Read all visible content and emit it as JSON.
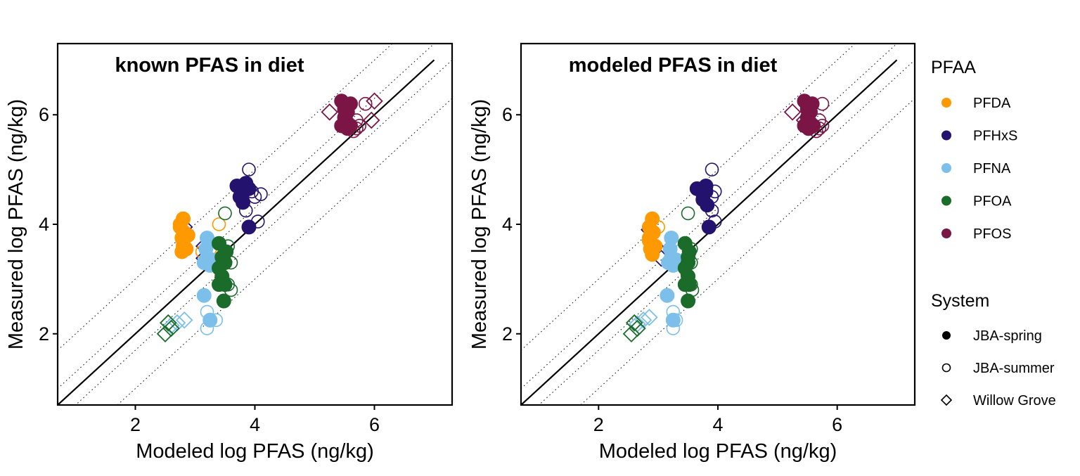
{
  "colors": {
    "PFDA": "#FF9900",
    "PFHxS": "#24136E",
    "PFNA": "#7CBFEA",
    "PFOA": "#1B6B2A",
    "PFOS": "#7A1546"
  },
  "legend": {
    "pfaa_title": "PFAA",
    "pfaa_items": [
      {
        "label": "PFDA",
        "color": "#FF9900"
      },
      {
        "label": "PFHxS",
        "color": "#24136E"
      },
      {
        "label": "PFNA",
        "color": "#7CBFEA"
      },
      {
        "label": "PFOA",
        "color": "#1B6B2A"
      },
      {
        "label": "PFOS",
        "color": "#7A1546"
      }
    ],
    "system_title": "System",
    "system_items": [
      {
        "label": "JBA-spring",
        "shape": "filled-circle"
      },
      {
        "label": "JBA-summer",
        "shape": "open-circle"
      },
      {
        "label": "Willow Grove",
        "shape": "open-diamond"
      }
    ]
  },
  "chart_data": [
    {
      "type": "scatter",
      "title": "known PFAS in diet",
      "xlabel": "Modeled log PFAS (ng/kg)",
      "ylabel": "Measured log PFAS (ng/kg)",
      "xlim": [
        0.7,
        7.3
      ],
      "ylim": [
        0.7,
        7.3
      ],
      "xticks": [
        "2",
        "4",
        "6"
      ],
      "yticks": [
        "2",
        "4",
        "6"
      ],
      "reference_lines": {
        "identity": "y = x",
        "dotted_offsets": [
          -1,
          -0.3,
          0.3,
          1
        ]
      },
      "grid": false,
      "series": [
        {
          "name": "PFDA",
          "system": "JBA-spring",
          "points": [
            [
              2.75,
              3.95
            ],
            [
              2.8,
              4.1
            ],
            [
              2.82,
              3.85
            ],
            [
              2.78,
              3.75
            ],
            [
              2.8,
              3.6
            ],
            [
              2.78,
              3.5
            ],
            [
              2.85,
              3.55
            ],
            [
              2.8,
              3.7
            ],
            [
              2.88,
              3.8
            ],
            [
              2.75,
              4.0
            ]
          ]
        },
        {
          "name": "PFDA",
          "system": "JBA-summer",
          "points": [
            [
              3.4,
              4.0
            ],
            [
              3.25,
              3.55
            ],
            [
              3.12,
              3.5
            ]
          ]
        },
        {
          "name": "PFHxS",
          "system": "JBA-spring",
          "points": [
            [
              3.7,
              4.7
            ],
            [
              3.8,
              4.6
            ],
            [
              3.85,
              4.75
            ],
            [
              3.75,
              4.5
            ],
            [
              3.8,
              4.4
            ],
            [
              3.9,
              4.65
            ],
            [
              3.9,
              3.95
            ]
          ]
        },
        {
          "name": "PFHxS",
          "system": "JBA-summer",
          "points": [
            [
              3.9,
              5.0
            ],
            [
              3.95,
              4.6
            ],
            [
              4.1,
              4.55
            ],
            [
              3.85,
              4.25
            ],
            [
              4.05,
              4.05
            ],
            [
              4.0,
              4.5
            ]
          ]
        },
        {
          "name": "PFHxS",
          "system": "Willow Grove",
          "points": [
            [
              2.82,
              3.95
            ],
            [
              3.15,
              3.6
            ],
            [
              3.15,
              3.38
            ]
          ]
        },
        {
          "name": "PFNA",
          "system": "JBA-spring",
          "points": [
            [
              3.2,
              3.75
            ],
            [
              3.18,
              3.55
            ],
            [
              3.2,
              3.4
            ],
            [
              3.25,
              3.25
            ],
            [
              3.15,
              3.3
            ],
            [
              3.28,
              3.35
            ],
            [
              3.15,
              2.7
            ],
            [
              3.25,
              2.25
            ]
          ]
        },
        {
          "name": "PFNA",
          "system": "JBA-summer",
          "points": [
            [
              3.2,
              2.4
            ],
            [
              3.35,
              2.25
            ],
            [
              3.2,
              2.1
            ],
            [
              3.3,
              3.5
            ]
          ]
        },
        {
          "name": "PFNA",
          "system": "Willow Grove",
          "points": [
            [
              2.7,
              2.2
            ],
            [
              2.82,
              2.25
            ],
            [
              2.6,
              2.15
            ]
          ]
        },
        {
          "name": "PFOA",
          "system": "JBA-spring",
          "points": [
            [
              3.4,
              3.65
            ],
            [
              3.45,
              3.4
            ],
            [
              3.5,
              3.3
            ],
            [
              3.4,
              3.2
            ],
            [
              3.45,
              3.05
            ],
            [
              3.4,
              2.9
            ],
            [
              3.5,
              2.9
            ],
            [
              3.48,
              2.6
            ],
            [
              3.52,
              3.5
            ]
          ]
        },
        {
          "name": "PFOA",
          "system": "JBA-summer",
          "points": [
            [
              3.5,
              4.2
            ],
            [
              3.55,
              3.6
            ],
            [
              3.6,
              3.3
            ],
            [
              3.55,
              2.9
            ],
            [
              3.6,
              2.8
            ]
          ]
        },
        {
          "name": "PFOA",
          "system": "Willow Grove",
          "points": [
            [
              2.55,
              2.2
            ],
            [
              2.5,
              2.0
            ],
            [
              2.6,
              2.1
            ]
          ]
        },
        {
          "name": "PFOS",
          "system": "JBA-spring",
          "points": [
            [
              5.45,
              6.25
            ],
            [
              5.5,
              6.15
            ],
            [
              5.55,
              6.05
            ],
            [
              5.5,
              5.95
            ],
            [
              5.55,
              5.85
            ],
            [
              5.45,
              5.8
            ],
            [
              5.6,
              5.8
            ],
            [
              5.5,
              6.1
            ],
            [
              5.6,
              6.2
            ],
            [
              5.55,
              5.75
            ]
          ]
        },
        {
          "name": "PFOS",
          "system": "JBA-summer",
          "points": [
            [
              5.7,
              5.9
            ],
            [
              5.75,
              5.8
            ],
            [
              5.65,
              5.7
            ],
            [
              5.85,
              6.2
            ],
            [
              5.7,
              5.75
            ]
          ]
        },
        {
          "name": "PFOS",
          "system": "Willow Grove",
          "points": [
            [
              5.25,
              6.05
            ],
            [
              5.95,
              5.9
            ],
            [
              6.0,
              6.25
            ]
          ]
        }
      ]
    },
    {
      "type": "scatter",
      "title": "modeled PFAS in diet",
      "xlabel": "Modeled log PFAS (ng/kg)",
      "ylabel": "Measured log PFAS (ng/kg)",
      "xlim": [
        0.7,
        7.3
      ],
      "ylim": [
        0.7,
        7.3
      ],
      "xticks": [
        "2",
        "4",
        "6"
      ],
      "yticks": [
        "2",
        "4",
        "6"
      ],
      "reference_lines": {
        "identity": "y = x",
        "dotted_offsets": [
          -1,
          -0.3,
          0.3,
          1
        ]
      },
      "grid": false,
      "series": [
        {
          "name": "PFDA",
          "system": "JBA-spring",
          "points": [
            [
              2.85,
              3.95
            ],
            [
              2.9,
              4.1
            ],
            [
              2.88,
              3.85
            ],
            [
              2.85,
              3.7
            ],
            [
              2.87,
              3.55
            ],
            [
              2.9,
              3.45
            ],
            [
              2.95,
              3.6
            ],
            [
              2.85,
              3.75
            ],
            [
              2.92,
              3.85
            ]
          ]
        },
        {
          "name": "PFDA",
          "system": "JBA-summer",
          "points": [
            [
              3.0,
              3.95
            ]
          ]
        },
        {
          "name": "PFHxS",
          "system": "JBA-spring",
          "points": [
            [
              3.65,
              4.65
            ],
            [
              3.75,
              4.55
            ],
            [
              3.8,
              4.7
            ],
            [
              3.75,
              4.45
            ],
            [
              3.82,
              4.35
            ],
            [
              3.8,
              4.6
            ],
            [
              3.85,
              3.95
            ]
          ]
        },
        {
          "name": "PFHxS",
          "system": "JBA-summer",
          "points": [
            [
              3.9,
              5.0
            ],
            [
              3.95,
              4.6
            ],
            [
              3.9,
              4.25
            ],
            [
              3.95,
              4.05
            ],
            [
              3.9,
              4.5
            ]
          ]
        },
        {
          "name": "PFHxS",
          "system": "Willow Grove",
          "points": [
            [
              2.85,
              3.9
            ],
            [
              2.95,
              3.6
            ],
            [
              3.05,
              3.38
            ]
          ]
        },
        {
          "name": "PFNA",
          "system": "JBA-spring",
          "points": [
            [
              3.22,
              3.75
            ],
            [
              3.2,
              3.55
            ],
            [
              3.22,
              3.4
            ],
            [
              3.25,
              3.25
            ],
            [
              3.17,
              3.3
            ],
            [
              3.3,
              3.35
            ],
            [
              3.15,
              2.7
            ],
            [
              3.25,
              2.25
            ]
          ]
        },
        {
          "name": "PFNA",
          "system": "JBA-summer",
          "points": [
            [
              3.25,
              2.4
            ],
            [
              3.3,
              2.25
            ],
            [
              3.25,
              2.1
            ],
            [
              3.35,
              3.5
            ]
          ]
        },
        {
          "name": "PFNA",
          "system": "Willow Grove",
          "points": [
            [
              2.75,
              2.25
            ],
            [
              2.85,
              2.3
            ],
            [
              2.65,
              2.18
            ]
          ]
        },
        {
          "name": "PFOA",
          "system": "JBA-spring",
          "points": [
            [
              3.45,
              3.65
            ],
            [
              3.5,
              3.4
            ],
            [
              3.5,
              3.3
            ],
            [
              3.45,
              3.2
            ],
            [
              3.5,
              3.05
            ],
            [
              3.45,
              2.9
            ],
            [
              3.52,
              2.9
            ],
            [
              3.5,
              2.6
            ],
            [
              3.52,
              3.5
            ]
          ]
        },
        {
          "name": "PFOA",
          "system": "JBA-summer",
          "points": [
            [
              3.5,
              4.2
            ],
            [
              3.55,
              3.55
            ],
            [
              3.55,
              3.3
            ],
            [
              3.55,
              2.9
            ],
            [
              3.57,
              2.8
            ]
          ]
        },
        {
          "name": "PFOA",
          "system": "Willow Grove",
          "points": [
            [
              2.6,
              2.2
            ],
            [
              2.55,
              2.0
            ],
            [
              2.65,
              2.1
            ]
          ]
        },
        {
          "name": "PFOS",
          "system": "JBA-spring",
          "points": [
            [
              5.45,
              6.25
            ],
            [
              5.5,
              6.15
            ],
            [
              5.55,
              6.05
            ],
            [
              5.5,
              5.95
            ],
            [
              5.55,
              5.85
            ],
            [
              5.45,
              5.8
            ],
            [
              5.6,
              5.8
            ],
            [
              5.5,
              6.1
            ],
            [
              5.58,
              6.2
            ],
            [
              5.52,
              5.75
            ]
          ]
        },
        {
          "name": "PFOS",
          "system": "JBA-summer",
          "points": [
            [
              5.7,
              5.9
            ],
            [
              5.75,
              5.8
            ],
            [
              5.65,
              5.7
            ],
            [
              5.75,
              6.2
            ],
            [
              5.7,
              5.75
            ]
          ]
        },
        {
          "name": "PFOS",
          "system": "Willow Grove",
          "points": [
            [
              5.25,
              6.05
            ],
            [
              5.45,
              5.9
            ]
          ]
        }
      ]
    }
  ]
}
